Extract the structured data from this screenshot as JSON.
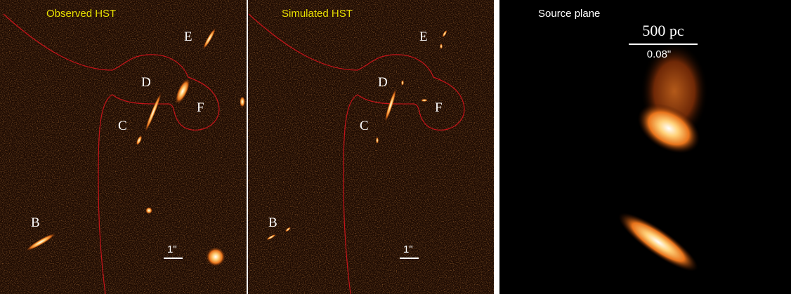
{
  "panels": [
    {
      "title": "Observed HST",
      "labels": [
        "E",
        "D",
        "F",
        "C",
        "B"
      ],
      "scale_label": "1\""
    },
    {
      "title": "Simulated HST",
      "labels": [
        "E",
        "D",
        "F",
        "C",
        "B"
      ],
      "scale_label": "1\""
    },
    {
      "title": "Source plane",
      "scale_top": "500 pc",
      "scale_bottom": "0.08\""
    }
  ]
}
